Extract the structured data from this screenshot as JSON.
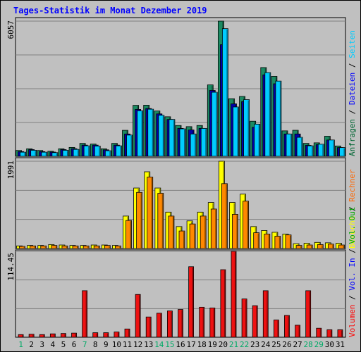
{
  "title": "Tages-Statistik im Monat Dezember 2019",
  "chart_data": [
    {
      "type": "bar",
      "panel": "Anfragen / Dateien / Seiten",
      "ymax_label": "6057",
      "ylim": [
        0,
        6057
      ],
      "grid": true,
      "right_label": [
        {
          "text": "Anfragen",
          "color": "#006633"
        },
        {
          "text": " / ",
          "color": "#000000"
        },
        {
          "text": "Dateien",
          "color": "#0000ff"
        },
        {
          "text": " / ",
          "color": "#000000"
        },
        {
          "text": "Seiten",
          "color": "#00ccff"
        }
      ],
      "series": [
        {
          "name": "Anfragen",
          "color": "#1b8a62",
          "values": [
            261,
            337,
            261,
            226,
            337,
            398,
            578,
            550,
            337,
            578,
            1164,
            2283,
            2290,
            2030,
            1771,
            1381,
            1329,
            1381,
            3200,
            6057,
            2581,
            2683,
            1571,
            3977,
            3582,
            1140,
            1166,
            578,
            603,
            900,
            463
          ]
        },
        {
          "name": "Dateien",
          "color": "#0000aa",
          "values": [
            210,
            300,
            210,
            190,
            300,
            340,
            500,
            500,
            290,
            500,
            1000,
            2100,
            2140,
            1900,
            1650,
            1250,
            1180,
            1250,
            2950,
            5000,
            2350,
            2450,
            1300,
            3650,
            3250,
            1000,
            1000,
            490,
            520,
            730,
            390
          ]
        },
        {
          "name": "Seiten",
          "color": "#00ccff",
          "values": [
            185,
            270,
            185,
            165,
            270,
            310,
            470,
            460,
            250,
            470,
            950,
            2040,
            2110,
            1840,
            1650,
            1230,
            1000,
            1250,
            2870,
            5720,
            2210,
            2540,
            1440,
            3750,
            3370,
            1000,
            850,
            470,
            540,
            730,
            390
          ]
        }
      ]
    },
    {
      "type": "bar",
      "panel": "Besuche / Rechner",
      "ymax_label": "1991",
      "ylim": [
        0,
        1991
      ],
      "grid": true,
      "right_label": [
        {
          "text": "Besuche",
          "color": "#ffff00"
        },
        {
          "text": " / ",
          "color": "#000000"
        },
        {
          "text": "Rechner",
          "color": "#ff6600"
        }
      ],
      "series": [
        {
          "name": "Besuche",
          "color": "#ffff00",
          "values": [
            60,
            70,
            70,
            90,
            80,
            70,
            70,
            80,
            80,
            70,
            740,
            1380,
            1750,
            1380,
            830,
            500,
            630,
            830,
            1050,
            1991,
            1050,
            1240,
            500,
            410,
            370,
            330,
            110,
            120,
            140,
            130,
            120
          ]
        },
        {
          "name": "Rechner",
          "color": "#ff8800",
          "values": [
            50,
            60,
            60,
            70,
            60,
            60,
            60,
            60,
            70,
            60,
            640,
            1280,
            1630,
            1260,
            740,
            400,
            560,
            740,
            900,
            1480,
            780,
            1080,
            360,
            330,
            280,
            310,
            70,
            80,
            90,
            100,
            80
          ]
        }
      ]
    },
    {
      "type": "bar",
      "panel": "Volumen / Vol. In / Vol. Out",
      "ymax_label": "114.45",
      "ylim": [
        0,
        114.45
      ],
      "grid": true,
      "right_label": [
        {
          "text": "Volumen",
          "color": "#ff0000"
        },
        {
          "text": " / ",
          "color": "#000000"
        },
        {
          "text": "Vol. In",
          "color": "#0000ff"
        },
        {
          "text": " / ",
          "color": "#000000"
        },
        {
          "text": "Vol. Out",
          "color": "#00aa00"
        }
      ],
      "series": [
        {
          "name": "Volumen",
          "color": "#ee1111",
          "values": [
            3.5,
            4,
            3.5,
            4.5,
            5,
            5.5,
            62,
            6,
            6,
            7,
            11,
            57,
            27,
            32,
            35,
            37,
            94,
            40,
            39,
            90,
            114.45,
            51,
            42,
            62,
            23,
            29,
            16,
            62,
            12,
            10,
            10
          ]
        }
      ]
    }
  ],
  "x_labels": [
    "1",
    "2",
    "3",
    "4",
    "5",
    "6",
    "7",
    "8",
    "9",
    "10",
    "11",
    "12",
    "13",
    "14",
    "15",
    "16",
    "17",
    "18",
    "19",
    "20",
    "21",
    "22",
    "23",
    "24",
    "25",
    "26",
    "27",
    "28",
    "29",
    "30",
    "31"
  ],
  "weekend_days": [
    1,
    7,
    14,
    15,
    21,
    22,
    28,
    29
  ],
  "weekday_color": "#000000",
  "weekend_color": "#00aa66"
}
